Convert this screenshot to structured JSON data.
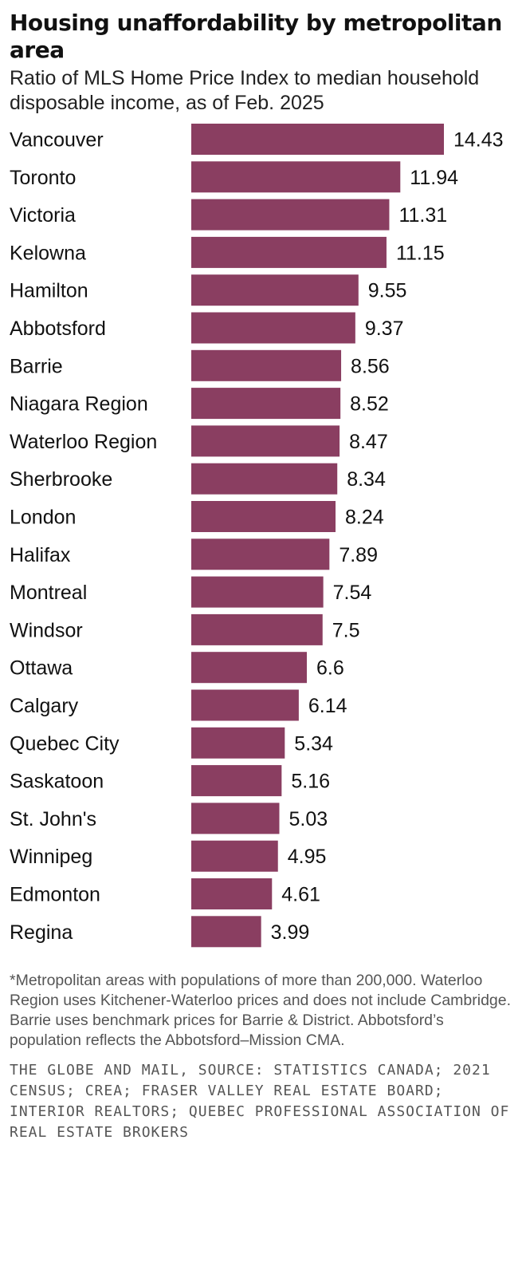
{
  "chart_data": {
    "type": "bar",
    "orientation": "horizontal",
    "title": "Housing unaffordability by metropolitan area",
    "subtitle": "Ratio of MLS Home Price Index to median household disposable income, as of Feb. 2025",
    "categories": [
      "Vancouver",
      "Toronto",
      "Victoria",
      "Kelowna",
      "Hamilton",
      "Abbotsford",
      "Barrie",
      "Niagara Region",
      "Waterloo Region",
      "Sherbrooke",
      "London",
      "Halifax",
      "Montreal",
      "Windsor",
      "Ottawa",
      "Calgary",
      "Quebec City",
      "Saskatoon",
      "St. John's",
      "Winnipeg",
      "Edmonton",
      "Regina"
    ],
    "values": [
      14.43,
      11.94,
      11.31,
      11.15,
      9.55,
      9.37,
      8.56,
      8.52,
      8.47,
      8.34,
      8.24,
      7.89,
      7.54,
      7.5,
      6.6,
      6.14,
      5.34,
      5.16,
      5.03,
      4.95,
      4.61,
      3.99
    ],
    "value_labels": [
      "14.43",
      "11.94",
      "11.31",
      "11.15",
      "9.55",
      "9.37",
      "8.56",
      "8.52",
      "8.47",
      "8.34",
      "8.24",
      "7.89",
      "7.54",
      "7.5",
      "6.6",
      "6.14",
      "5.34",
      "5.16",
      "5.03",
      "4.95",
      "4.61",
      "3.99"
    ],
    "bar_color": "#8a3e61",
    "grid": false,
    "xlim": [
      0,
      14.43
    ]
  },
  "footnote": "*Metropolitan areas with populations of more than 200,000. Waterloo Region uses Kitchener-Waterloo prices and does not include Cambridge. Barrie uses benchmark prices for Barrie & District. Abbotsford’s population reflects the Abbotsford–Mission CMA.",
  "source": "The Globe and Mail, Source: Statistics Canada; 2021 Census; CREA; Fraser Valley Real Estate Board; Interior Realtors; Quebec Professional Association of Real Estate Brokers"
}
